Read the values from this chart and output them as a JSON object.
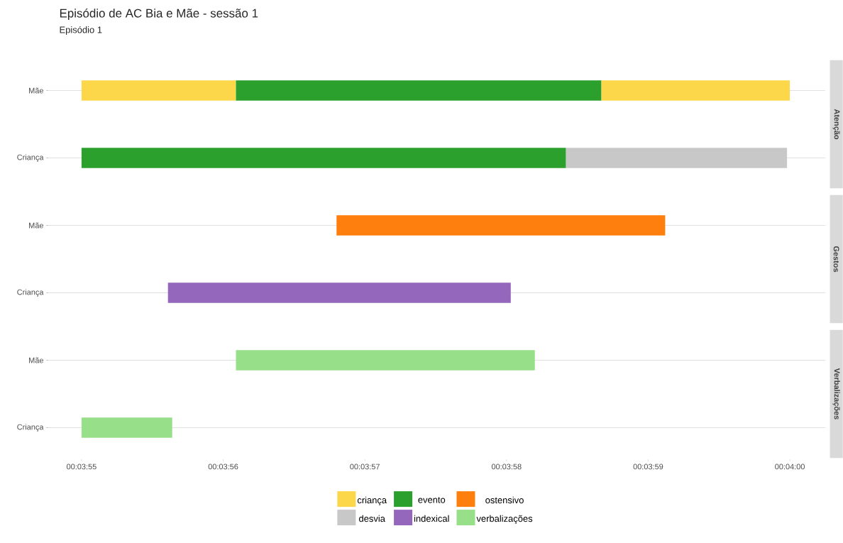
{
  "chart_data": {
    "type": "bar",
    "orientation": "horizontal",
    "title": "Episódio de AC Bia e Mãe - sessão 1",
    "subtitle": "Episódio 1",
    "categories": [
      "Mãe",
      "Criança",
      "Mãe",
      "Criança",
      "Mãe",
      "Criança"
    ],
    "series": [
      {
        "name": "criança",
        "color": "#fdd74a",
        "base": [
          235,
          null,
          null,
          null,
          null,
          null
        ],
        "values": [
          1.09,
          null,
          null,
          null,
          null,
          null
        ]
      },
      {
        "name": "evento",
        "color": "#2ca02c",
        "base": [
          236.09,
          235,
          null,
          null,
          null,
          null
        ],
        "values": [
          2.58,
          3.42,
          null,
          null,
          null,
          null
        ]
      },
      {
        "name": "ostensivo",
        "color": "#ff7f0e",
        "base": [
          null,
          null,
          236.8,
          null,
          null,
          null
        ],
        "values": [
          null,
          null,
          2.32,
          null,
          null,
          null
        ]
      },
      {
        "name": "desvia",
        "color": "#c8c8c8",
        "base": [
          null,
          238.42,
          null,
          null,
          null,
          null
        ],
        "values": [
          null,
          1.56,
          null,
          null,
          null,
          null
        ]
      },
      {
        "name": "indexical",
        "color": "#9467bd",
        "base": [
          null,
          null,
          null,
          235.61,
          null,
          null
        ],
        "values": [
          null,
          null,
          null,
          2.42,
          null,
          null
        ]
      },
      {
        "name": "verbalizações",
        "color": "#98df8a",
        "base": [
          null,
          null,
          null,
          null,
          236.09,
          235
        ],
        "values": [
          null,
          null,
          null,
          null,
          2.11,
          0.64
        ]
      },
      {
        "color": "#fdd74a",
        "base": [
          238.67,
          null,
          null,
          null,
          null,
          null
        ],
        "values": [
          1.33,
          null,
          null,
          null,
          null,
          null
        ]
      }
    ],
    "xlim": [
      234.75,
      240.25
    ],
    "xticks": [
      {
        "value": 235,
        "label": "00:03:55"
      },
      {
        "value": 236,
        "label": "00:03:56"
      },
      {
        "value": 237,
        "label": "00:03:57"
      },
      {
        "value": 238,
        "label": "00:03:58"
      },
      {
        "value": 239,
        "label": "00:03:59"
      },
      {
        "value": 240,
        "label": "00:04:00"
      }
    ],
    "grid": "y",
    "legend": "bottom",
    "annotations": [
      "Atenção",
      "Gestos",
      "Verbalizações"
    ]
  }
}
